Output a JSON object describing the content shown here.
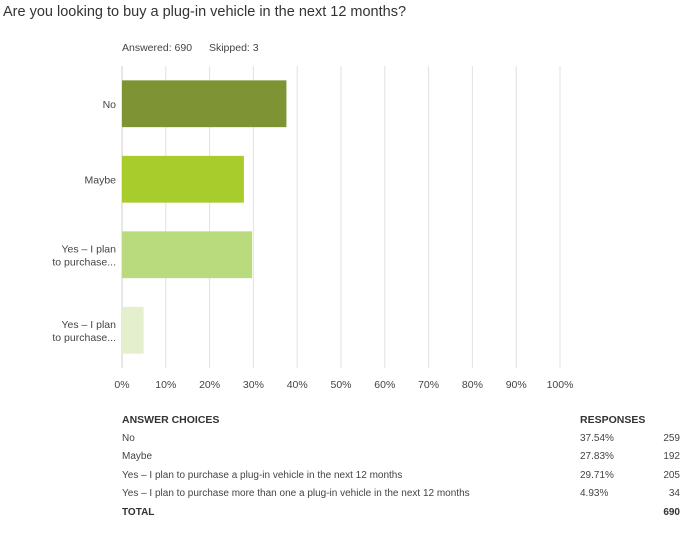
{
  "question": "Are you looking to buy a plug-in vehicle in the next 12 months?",
  "meta": {
    "answered": "Answered: 690",
    "skipped": "Skipped: 3"
  },
  "chart_data": {
    "type": "bar",
    "orientation": "horizontal",
    "categories": [
      [
        "No"
      ],
      [
        "Maybe"
      ],
      [
        "Yes – I plan",
        "to purchase..."
      ],
      [
        "Yes – I plan",
        "to purchase..."
      ]
    ],
    "values": [
      37.54,
      27.83,
      29.71,
      4.93
    ],
    "colors": [
      "#7e9333",
      "#a8cc2c",
      "#b9da7d",
      "#e3efcd"
    ],
    "xlim": [
      0,
      100
    ],
    "xticks": [
      "0%",
      "10%",
      "20%",
      "30%",
      "40%",
      "50%",
      "60%",
      "70%",
      "80%",
      "90%",
      "100%"
    ],
    "grid": true
  },
  "table": {
    "headers": {
      "choice": "ANSWER CHOICES",
      "responses": "RESPONSES"
    },
    "rows": [
      {
        "choice": "No",
        "pct": "37.54%",
        "count": "259"
      },
      {
        "choice": "Maybe",
        "pct": "27.83%",
        "count": "192"
      },
      {
        "choice": "Yes – I plan to purchase a plug-in vehicle in the next 12 months",
        "pct": "29.71%",
        "count": "205"
      },
      {
        "choice": "Yes – I plan to purchase more than one a plug-in vehicle in the next 12 months",
        "pct": "4.93%",
        "count": "34"
      }
    ],
    "total": {
      "label": "TOTAL",
      "count": "690"
    }
  }
}
